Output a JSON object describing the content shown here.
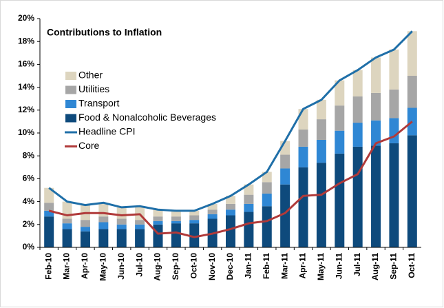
{
  "chart_data": {
    "type": "bar",
    "stacked": true,
    "title": "Contributions to Inflation",
    "categories": [
      "Feb-10",
      "Mar-10",
      "Apr-10",
      "May-10",
      "Jun-10",
      "Jul-10",
      "Aug-10",
      "Sep-10",
      "Oct-10",
      "Nov-10",
      "Dec-10",
      "Jan-11",
      "Feb-11",
      "Mar-11",
      "Apr-11",
      "May-11",
      "Jun-11",
      "Jul-11",
      "Aug-11",
      "Sep-11",
      "Oct-11"
    ],
    "series": [
      {
        "name": "Other",
        "type": "bar",
        "color": "#ddd5bf",
        "values": [
          1.3,
          1.5,
          1.3,
          1.2,
          1.0,
          1.2,
          0.6,
          0.5,
          0.4,
          0.5,
          0.7,
          0.9,
          0.9,
          1.2,
          1.8,
          1.7,
          2.2,
          2.3,
          3.1,
          3.5,
          3.9
        ]
      },
      {
        "name": "Utilities",
        "type": "bar",
        "color": "#a6a6a6",
        "values": [
          0.7,
          0.4,
          0.6,
          0.5,
          0.5,
          0.4,
          0.4,
          0.4,
          0.4,
          0.4,
          0.5,
          0.8,
          1.0,
          1.2,
          1.5,
          1.8,
          2.2,
          2.3,
          2.4,
          2.5,
          2.8
        ]
      },
      {
        "name": "Transport",
        "type": "bar",
        "color": "#2f87d4",
        "values": [
          0.5,
          0.5,
          0.4,
          0.6,
          0.4,
          0.4,
          0.3,
          0.2,
          0.3,
          0.4,
          0.5,
          0.7,
          1.1,
          1.4,
          1.8,
          2.0,
          2.0,
          2.1,
          2.2,
          2.2,
          2.4
        ]
      },
      {
        "name": "Food &  Nonalcoholic Beverages",
        "type": "bar",
        "color": "#0e4a7c",
        "values": [
          2.7,
          1.6,
          1.4,
          1.6,
          1.6,
          1.6,
          2.0,
          2.1,
          2.1,
          2.5,
          2.8,
          3.1,
          3.6,
          5.5,
          7.0,
          7.4,
          8.2,
          8.8,
          8.9,
          9.1,
          9.8
        ]
      },
      {
        "name": "Headline CPI",
        "type": "line",
        "color": "#1f6fa8",
        "values": [
          5.2,
          4.0,
          3.7,
          3.9,
          3.5,
          3.6,
          3.3,
          3.2,
          3.2,
          3.8,
          4.5,
          5.5,
          6.6,
          9.3,
          12.1,
          12.9,
          14.6,
          15.5,
          16.6,
          17.3,
          18.9
        ]
      },
      {
        "name": "Core",
        "type": "line",
        "color": "#b03a3a",
        "values": [
          3.2,
          2.8,
          3.0,
          3.0,
          2.8,
          2.9,
          1.2,
          1.3,
          0.9,
          1.2,
          1.6,
          2.1,
          2.3,
          3.0,
          4.5,
          4.6,
          5.6,
          6.4,
          9.1,
          9.7,
          11.0
        ]
      }
    ],
    "ylim": [
      0,
      20
    ],
    "yticks": [
      {
        "value": 0,
        "label": "0%"
      },
      {
        "value": 2,
        "label": "2%"
      },
      {
        "value": 4,
        "label": "4%"
      },
      {
        "value": 6,
        "label": "6%"
      },
      {
        "value": 8,
        "label": "8%"
      },
      {
        "value": 10,
        "label": "10%"
      },
      {
        "value": 12,
        "label": "12%"
      },
      {
        "value": 14,
        "label": "14%"
      },
      {
        "value": 16,
        "label": "16%"
      },
      {
        "value": 18,
        "label": "18%"
      },
      {
        "value": 20,
        "label": "20%"
      }
    ],
    "grid": false,
    "legend": "upper left"
  }
}
